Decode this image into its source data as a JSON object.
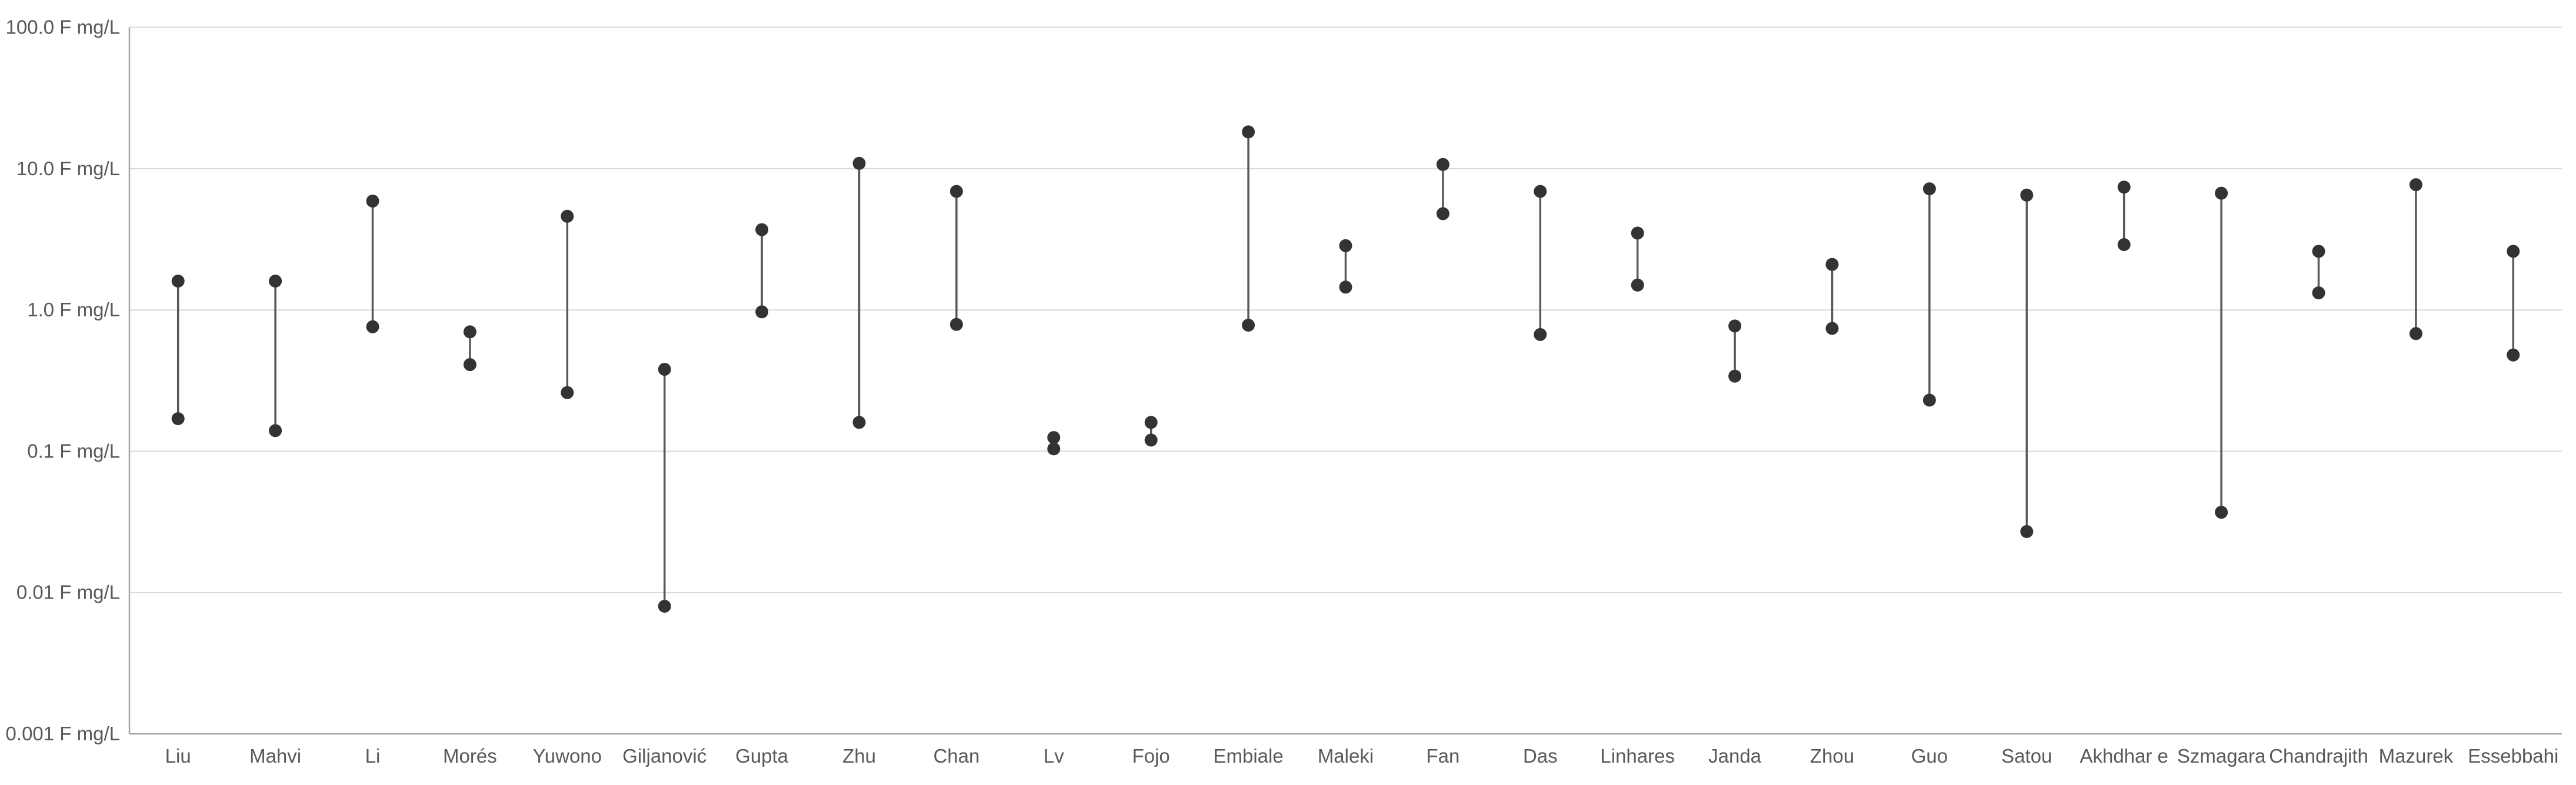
{
  "chart_data": {
    "type": "scatter",
    "subtype": "high-low-range-dotplot",
    "title": "",
    "legend": "none",
    "grid": true,
    "y_axis": {
      "scale": "log10",
      "min": 0.001,
      "max": 100,
      "unit": "F mg/L",
      "tick_values": [
        100,
        10,
        1,
        0.1,
        0.01,
        0.001
      ],
      "tick_labels": [
        "100.0 F mg/L",
        "10.0 F mg/L",
        "1.0 F mg/L",
        "0.1 F mg/L",
        "0.01 F mg/L",
        "0.001 F mg/L"
      ]
    },
    "categories": [
      "Liu",
      "Mahvi",
      "Li",
      "Morés",
      "Yuwono",
      "Giljanović",
      "Gupta",
      "Zhu",
      "Chan",
      "Lv",
      "Fojo",
      "Embiale",
      "Maleki",
      "Fan",
      "Das",
      "Linhares",
      "Janda",
      "Zhou",
      "Guo",
      "Satou",
      "Akhdhar e",
      "Szmagara",
      "Chandrajith",
      "Mazurek",
      "Essebbahi"
    ],
    "series": [
      {
        "name": "high",
        "values": [
          1.6,
          1.6,
          5.9,
          0.7,
          4.6,
          0.38,
          3.7,
          10.9,
          6.9,
          0.125,
          0.16,
          18.2,
          2.85,
          10.7,
          6.9,
          3.5,
          0.77,
          2.1,
          7.2,
          6.5,
          7.4,
          6.7,
          2.6,
          7.7,
          2.6
        ]
      },
      {
        "name": "low",
        "values": [
          0.17,
          0.14,
          0.76,
          0.41,
          0.26,
          0.008,
          0.97,
          0.16,
          0.79,
          0.104,
          0.12,
          0.78,
          1.45,
          4.8,
          0.67,
          1.5,
          0.34,
          0.74,
          0.23,
          0.027,
          2.9,
          0.037,
          1.32,
          0.68,
          0.48
        ]
      }
    ],
    "colors": {
      "background": "#ffffff",
      "marker": "#333333",
      "connector": "#595959",
      "gridline": "#d9d9d9",
      "axis_line": "#a6a6a6",
      "label_text": "#595959"
    }
  }
}
